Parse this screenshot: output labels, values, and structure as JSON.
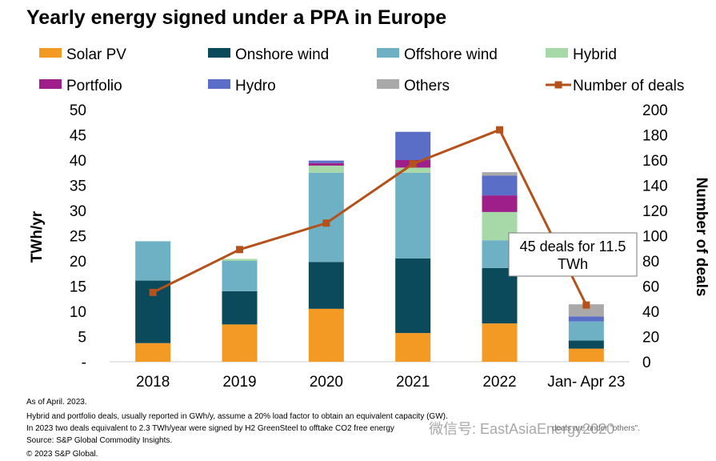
{
  "chart_data": {
    "type": "bar",
    "title": "Yearly energy signed under a PPA in Europe",
    "categories": [
      "2018",
      "2019",
      "2020",
      "2021",
      "2022",
      "Jan- Apr 23"
    ],
    "ylabel": "TWh/yr",
    "y2label": "Number of deals",
    "ylim": [
      0,
      50
    ],
    "y2lim": [
      0,
      200
    ],
    "yticks": [
      "-",
      "5",
      "10",
      "15",
      "20",
      "25",
      "30",
      "35",
      "40",
      "45",
      "50"
    ],
    "y2ticks": [
      "0",
      "20",
      "40",
      "60",
      "80",
      "100",
      "120",
      "140",
      "160",
      "180",
      "200"
    ],
    "stacked": true,
    "legend_position": "top",
    "series": [
      {
        "name": "Solar PV",
        "color": "#f39a24",
        "values": [
          3.7,
          7.4,
          10.5,
          5.7,
          7.6,
          2.6
        ]
      },
      {
        "name": "Onshore wind",
        "color": "#0b4a5a",
        "values": [
          12.4,
          6.6,
          9.3,
          14.8,
          11.0,
          1.6
        ]
      },
      {
        "name": "Offshore wind",
        "color": "#6eb1c4",
        "values": [
          7.8,
          6.0,
          17.7,
          17.0,
          5.5,
          3.8
        ]
      },
      {
        "name": "Hybrid",
        "color": "#a7d9a8",
        "values": [
          0,
          0.4,
          1.4,
          1.0,
          5.6,
          0
        ]
      },
      {
        "name": "Portfolio",
        "color": "#9e1f8a",
        "values": [
          0,
          0,
          0.5,
          1.5,
          3.3,
          0
        ]
      },
      {
        "name": "Hydro",
        "color": "#5b6ec7",
        "values": [
          0,
          0,
          0.5,
          5.6,
          3.9,
          1.0
        ]
      },
      {
        "name": "Others",
        "color": "#a9a9a9",
        "values": [
          0,
          0,
          0,
          0,
          0.7,
          2.4
        ]
      }
    ],
    "line_series": {
      "name": "Number of deals",
      "color": "#b5511a",
      "axis": "right",
      "values": [
        55,
        89,
        110,
        157,
        184,
        45
      ]
    },
    "annotation": {
      "text_lines": [
        "45 deals for 11.5",
        "TWh"
      ]
    }
  },
  "notes": [
    "As of April. 2023.",
    "Hybrid and portfolio deals, usually reported in GWh/y, assume a 20% load factor to obtain an equivalent  capacity (GW).",
    "In 2023 two deals equivalent to 2.3 TWh/year were signed by H2 GreenSteel to offtake CO2 free energy",
    "Source: S&P Global Commodity Insights.",
    "© 2023 S&P Global."
  ],
  "watermark": "微信号: EastAsiaEnergy2020",
  "overlay_fragment": "deals are under \"others\"."
}
